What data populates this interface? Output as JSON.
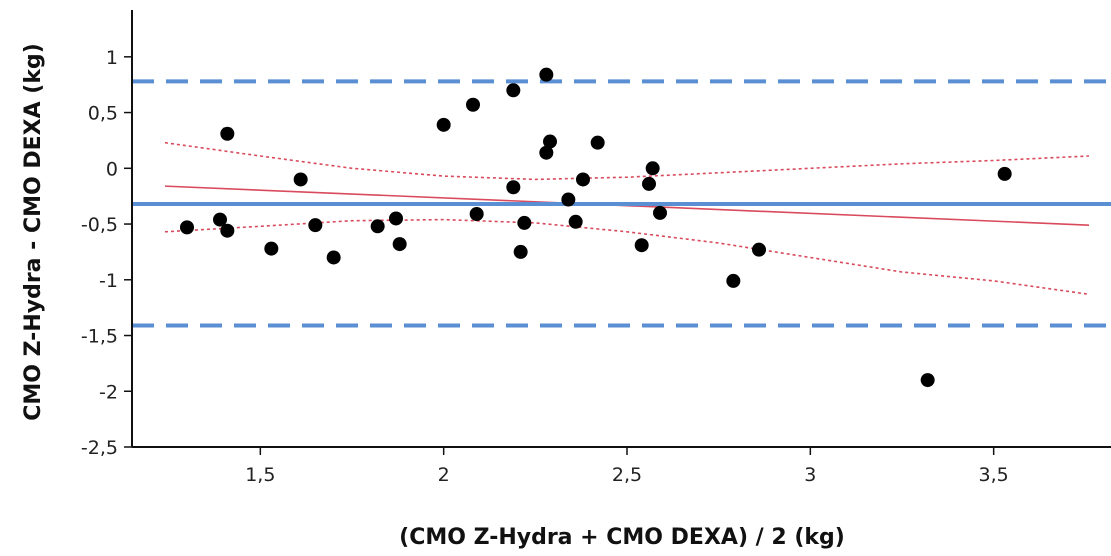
{
  "chart_data": {
    "type": "scatter",
    "title": "",
    "xlabel": "(CMO Z-Hydra + CMO DEXA) / 2 (kg)",
    "ylabel": "CMO Z-Hydra - CMO DEXA (kg)",
    "xlim": [
      1.15,
      3.82
    ],
    "ylim": [
      -2.5,
      1.42
    ],
    "grid": false,
    "x_ticks": [
      {
        "value": 1.5,
        "label": "1,5"
      },
      {
        "value": 2,
        "label": "2"
      },
      {
        "value": 2.5,
        "label": "2,5"
      },
      {
        "value": 3,
        "label": "3"
      },
      {
        "value": 3.5,
        "label": "3,5"
      }
    ],
    "y_ticks": [
      {
        "value": 1,
        "label": "1"
      },
      {
        "value": 0.5,
        "label": "0,5"
      },
      {
        "value": 0,
        "label": "0"
      },
      {
        "value": -0.5,
        "label": "-0,5"
      },
      {
        "value": -1,
        "label": "-1"
      },
      {
        "value": -1.5,
        "label": "-1,5"
      },
      {
        "value": -2,
        "label": "-2"
      },
      {
        "value": -2.5,
        "label": "-2,5"
      }
    ],
    "points": [
      {
        "x": 1.3,
        "y": -0.53
      },
      {
        "x": 1.39,
        "y": -0.46
      },
      {
        "x": 1.41,
        "y": 0.31
      },
      {
        "x": 1.41,
        "y": -0.56
      },
      {
        "x": 1.53,
        "y": -0.72
      },
      {
        "x": 1.61,
        "y": -0.1
      },
      {
        "x": 1.65,
        "y": -0.51
      },
      {
        "x": 1.7,
        "y": -0.8
      },
      {
        "x": 1.82,
        "y": -0.52
      },
      {
        "x": 1.87,
        "y": -0.45
      },
      {
        "x": 1.88,
        "y": -0.68
      },
      {
        "x": 2.0,
        "y": 0.39
      },
      {
        "x": 2.08,
        "y": 0.57
      },
      {
        "x": 2.09,
        "y": -0.41
      },
      {
        "x": 2.19,
        "y": 0.7
      },
      {
        "x": 2.19,
        "y": -0.17
      },
      {
        "x": 2.21,
        "y": -0.75
      },
      {
        "x": 2.22,
        "y": -0.49
      },
      {
        "x": 2.28,
        "y": 0.84
      },
      {
        "x": 2.28,
        "y": 0.14
      },
      {
        "x": 2.29,
        "y": 0.24
      },
      {
        "x": 2.34,
        "y": -0.28
      },
      {
        "x": 2.36,
        "y": -0.48
      },
      {
        "x": 2.38,
        "y": -0.1
      },
      {
        "x": 2.42,
        "y": 0.23
      },
      {
        "x": 2.54,
        "y": -0.69
      },
      {
        "x": 2.56,
        "y": -0.14
      },
      {
        "x": 2.57,
        "y": 0.0
      },
      {
        "x": 2.59,
        "y": -0.4
      },
      {
        "x": 2.79,
        "y": -1.01
      },
      {
        "x": 2.86,
        "y": -0.73
      },
      {
        "x": 3.32,
        "y": -1.9
      },
      {
        "x": 3.53,
        "y": -0.05
      }
    ],
    "mean_line": {
      "y": -0.32,
      "color": "#5b8fd4"
    },
    "limits_of_agreement": [
      {
        "y": 0.78,
        "color": "#5b8fd4"
      },
      {
        "y": -1.41,
        "color": "#5b8fd4"
      }
    ],
    "regression_line": {
      "x": [
        1.24,
        3.76
      ],
      "y": [
        -0.16,
        -0.51
      ],
      "color": "#d94a5c"
    },
    "confidence_band": {
      "color": "#d94a5c",
      "upper": [
        [
          1.24,
          0.23
        ],
        [
          1.5,
          0.11
        ],
        [
          1.75,
          0.0
        ],
        [
          2.0,
          -0.07
        ],
        [
          2.25,
          -0.1
        ],
        [
          2.5,
          -0.08
        ],
        [
          2.75,
          -0.04
        ],
        [
          3.0,
          0.0
        ],
        [
          3.25,
          0.04
        ],
        [
          3.5,
          0.07
        ],
        [
          3.76,
          0.11
        ]
      ],
      "lower": [
        [
          1.24,
          -0.57
        ],
        [
          1.5,
          -0.52
        ],
        [
          1.75,
          -0.47
        ],
        [
          2.0,
          -0.46
        ],
        [
          2.25,
          -0.49
        ],
        [
          2.5,
          -0.57
        ],
        [
          2.75,
          -0.67
        ],
        [
          3.0,
          -0.8
        ],
        [
          3.25,
          -0.93
        ],
        [
          3.5,
          -1.01
        ],
        [
          3.76,
          -1.13
        ]
      ]
    }
  }
}
